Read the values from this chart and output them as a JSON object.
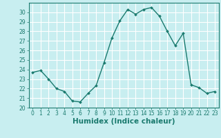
{
  "x": [
    0,
    1,
    2,
    3,
    4,
    5,
    6,
    7,
    8,
    9,
    10,
    11,
    12,
    13,
    14,
    15,
    16,
    17,
    18,
    19,
    20,
    21,
    22,
    23
  ],
  "y": [
    23.7,
    23.9,
    23.0,
    22.0,
    21.7,
    20.7,
    20.6,
    21.5,
    22.3,
    24.7,
    27.3,
    29.1,
    30.3,
    29.8,
    30.3,
    30.5,
    29.6,
    28.0,
    26.5,
    27.8,
    22.4,
    22.1,
    21.5,
    21.7
  ],
  "line_color": "#1a7a6e",
  "marker": "D",
  "marker_size": 2.0,
  "line_width": 1.0,
  "bg_color": "#c8eef0",
  "grid_color": "#ffffff",
  "xlabel": "Humidex (Indice chaleur)",
  "xlim": [
    -0.5,
    23.5
  ],
  "ylim": [
    20,
    31
  ],
  "yticks": [
    20,
    21,
    22,
    23,
    24,
    25,
    26,
    27,
    28,
    29,
    30
  ],
  "xticks": [
    0,
    1,
    2,
    3,
    4,
    5,
    6,
    7,
    8,
    9,
    10,
    11,
    12,
    13,
    14,
    15,
    16,
    17,
    18,
    19,
    20,
    21,
    22,
    23
  ],
  "tick_label_size": 5.5,
  "xlabel_size": 7.5
}
